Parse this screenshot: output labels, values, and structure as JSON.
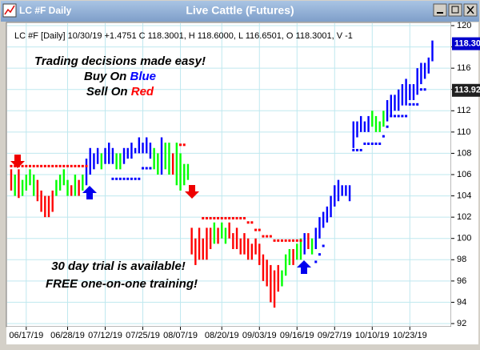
{
  "window": {
    "tab": "LC #F Daily"
  },
  "chart_data": {
    "type": "ohlc",
    "title": "Live Cattle (Futures)",
    "subtitle": "LC #F [Daily] 10/30/19 +1.4751 C 118.3001, H 118.6000, L 116.6501, O 118.3001, V -1",
    "annotations": [
      "Trading decisions made easy!",
      "Buy On ",
      "Blue",
      "Sell On ",
      "Red",
      "30 day trial is available!",
      "FREE one-on-one training!"
    ],
    "categories": [
      null,
      null,
      null,
      null,
      "06/17/19",
      null,
      null,
      null,
      null,
      null,
      null,
      null,
      null,
      null,
      null,
      "06/28/19",
      null,
      null,
      null,
      null,
      null,
      null,
      null,
      null,
      null,
      "07/12/19",
      null,
      null,
      null,
      null,
      null,
      null,
      null,
      null,
      null,
      "07/25/19",
      null,
      null,
      null,
      null,
      null,
      null,
      null,
      null,
      null,
      "08/07/19",
      null,
      null,
      null,
      null,
      null,
      null,
      null,
      null,
      null,
      null,
      "08/20/19",
      null,
      null,
      null,
      null,
      null,
      null,
      null,
      null,
      null,
      "09/03/19",
      null,
      null,
      null,
      null,
      null,
      null,
      null,
      null,
      null,
      "09/16/19",
      null,
      null,
      null,
      null,
      null,
      null,
      null,
      null,
      null,
      "09/27/19",
      null,
      null,
      null,
      null,
      null,
      null,
      null,
      null,
      null,
      "10/10/19",
      null,
      null,
      null,
      null,
      null,
      null,
      null,
      null,
      null,
      "10/23/19",
      null,
      null,
      null,
      null,
      null,
      null
    ],
    "high": [
      106.5,
      106,
      106.5,
      105.5,
      106,
      106.5,
      106,
      105.5,
      104.5,
      104,
      104,
      104.5,
      105.5,
      106,
      106.5,
      105.5,
      105,
      106,
      105.5,
      106,
      107.5,
      108.5,
      108,
      108.5,
      108,
      108.5,
      109,
      108.5,
      108,
      108,
      108.5,
      108.5,
      109,
      108.5,
      109.5,
      109,
      109.5,
      109,
      108.5,
      108,
      109.5,
      109,
      109,
      108,
      109,
      108,
      107,
      107,
      101,
      100,
      101,
      100,
      101,
      101,
      101.5,
      101,
      101.5,
      101,
      101.5,
      100.5,
      101,
      100,
      100.5,
      100,
      99.5,
      100,
      99.5,
      98.5,
      98,
      97.5,
      97,
      97.5,
      97,
      98.5,
      99,
      99,
      99.5,
      100,
      100.5,
      100.5,
      100,
      101,
      102,
      102.5,
      103,
      104,
      105,
      105.5,
      105,
      105,
      105,
      111,
      111,
      111.5,
      111,
      111.5,
      112,
      111.5,
      111,
      112,
      113,
      113.5,
      113.5,
      114,
      114.5,
      115,
      114.5,
      114.5,
      116,
      116.5,
      116.5,
      117,
      118.6
    ],
    "low": [
      104.5,
      104,
      103.8,
      104,
      104.5,
      105,
      104,
      103.5,
      102.5,
      102,
      102,
      102.5,
      104,
      104.5,
      105,
      104,
      104,
      104,
      104,
      104.5,
      105,
      106,
      106.5,
      107,
      106.5,
      107,
      107,
      107,
      106.5,
      106.5,
      107,
      107.5,
      107.5,
      108,
      108,
      108,
      108,
      107.5,
      106.5,
      106,
      106,
      106.5,
      106,
      106,
      105,
      104.5,
      105,
      105.5,
      98.5,
      97.5,
      98,
      98,
      98,
      99,
      99.5,
      99.5,
      100,
      99.5,
      100,
      99,
      99,
      98.5,
      98.5,
      98,
      98,
      98.5,
      97.5,
      96,
      95.5,
      94,
      93.5,
      95,
      95.5,
      96.5,
      97.5,
      97.5,
      98,
      98,
      98.5,
      99,
      98.5,
      99,
      100,
      101,
      101.5,
      102,
      103,
      103.5,
      104,
      104,
      103.5,
      108.5,
      109.5,
      110,
      110,
      110,
      110.5,
      110,
      110,
      110.5,
      111,
      111.5,
      112,
      112,
      112.5,
      112.5,
      113,
      113,
      113.5,
      114.5,
      115,
      115.5,
      116.65
    ],
    "bar_colors": [
      "red",
      "lime",
      "red",
      "lime",
      "lime",
      "lime",
      "lime",
      "red",
      "red",
      "red",
      "red",
      "red",
      "lime",
      "lime",
      "lime",
      "lime",
      "red",
      "lime",
      "red",
      "lime",
      "blue",
      "blue",
      "blue",
      "blue",
      "lime",
      "blue",
      "blue",
      "blue",
      "lime",
      "lime",
      "blue",
      "blue",
      "blue",
      "blue",
      "blue",
      "blue",
      "blue",
      "blue",
      "lime",
      "lime",
      "blue",
      "lime",
      "lime",
      "red",
      "lime",
      "lime",
      "lime",
      "lime",
      "red",
      "red",
      "red",
      "red",
      "red",
      "red",
      "lime",
      "red",
      "lime",
      "lime",
      "red",
      "red",
      "red",
      "red",
      "red",
      "red",
      "red",
      "red",
      "red",
      "red",
      "red",
      "red",
      "red",
      "red",
      "lime",
      "lime",
      "lime",
      "red",
      "lime",
      "lime",
      "blue",
      "red",
      "lime",
      "blue",
      "blue",
      "blue",
      "blue",
      "blue",
      "blue",
      "blue",
      "blue",
      "blue",
      "blue",
      "blue",
      "blue",
      "blue",
      "blue",
      "blue",
      "lime",
      "lime",
      "lime",
      "lime",
      "blue",
      "blue",
      "blue",
      "blue",
      "blue",
      "blue",
      "blue",
      "blue",
      "blue",
      "blue",
      "blue",
      "blue",
      "blue"
    ],
    "stops": [
      {
        "color": "red",
        "values": [
          106.8,
          106.8,
          106.8,
          106.8,
          106.8,
          106.8,
          106.8,
          106.8,
          106.8,
          106.8,
          106.8,
          106.8,
          106.8,
          106.8,
          106.8,
          106.8,
          106.8,
          106.8,
          106.8,
          106.8,
          106.8,
          null,
          null,
          null,
          null,
          null,
          null,
          null,
          null,
          null,
          null,
          null,
          null,
          null,
          null,
          null,
          null,
          null,
          null,
          null,
          null,
          null,
          null,
          null,
          null,
          108.8,
          108.8,
          null,
          null,
          null,
          null,
          101.9,
          101.9,
          101.9,
          101.9,
          101.9,
          101.9,
          101.9,
          101.9,
          101.9,
          101.9,
          101.9,
          101.9,
          101.5,
          101.5,
          100.8,
          100.8,
          100.2,
          100.2,
          100.2,
          99.8,
          99.8,
          99.8,
          99.8,
          99.8,
          99.8,
          99.8,
          99.8,
          null,
          null,
          null,
          null,
          null,
          null,
          null,
          null,
          null,
          null,
          null,
          null,
          null,
          null,
          null,
          null,
          null,
          null,
          null,
          null,
          null,
          null,
          null,
          null,
          null,
          null,
          null,
          null,
          null,
          null,
          null,
          null,
          null,
          null,
          null
        ]
      },
      {
        "color": "blue",
        "values": [
          null,
          null,
          null,
          null,
          null,
          null,
          null,
          null,
          null,
          null,
          null,
          null,
          null,
          null,
          null,
          null,
          null,
          null,
          null,
          null,
          null,
          null,
          null,
          null,
          null,
          null,
          null,
          105.6,
          105.6,
          105.6,
          105.6,
          105.6,
          105.6,
          105.6,
          105.6,
          106.6,
          106.6,
          106.6,
          null,
          null,
          null,
          null,
          null,
          null,
          null,
          null,
          null,
          null,
          null,
          null,
          null,
          null,
          null,
          null,
          null,
          null,
          null,
          null,
          null,
          null,
          null,
          null,
          null,
          null,
          null,
          null,
          null,
          null,
          null,
          null,
          null,
          null,
          null,
          null,
          null,
          null,
          null,
          null,
          null,
          null,
          null,
          97.8,
          98.5,
          99.3,
          null,
          null,
          null,
          null,
          null,
          null,
          null,
          108.3,
          108.3,
          108.3,
          108.9,
          108.9,
          108.9,
          108.9,
          108.9,
          109.6,
          110.5,
          111.5,
          111.5,
          111.5,
          111.5,
          111.5,
          112.6,
          112.6,
          112.6,
          114,
          114,
          null,
          null
        ]
      }
    ],
    "price_labels": [
      {
        "value": 118.3,
        "label": "118.30"
      },
      {
        "value": 113.92,
        "label": "113.92"
      }
    ],
    "ylim": [
      92,
      120
    ],
    "yticks": [
      92,
      94,
      96,
      98,
      100,
      102,
      104,
      106,
      108,
      110,
      112,
      114,
      116,
      118,
      120
    ],
    "grid": true
  }
}
